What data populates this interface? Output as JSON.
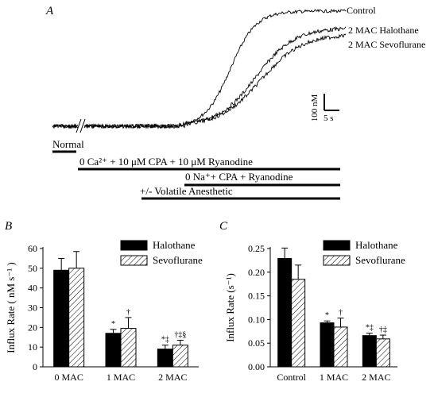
{
  "panels": {
    "a": "A",
    "b": "B",
    "c": "C"
  },
  "trace_panel": {
    "legend": [
      "Control",
      "2 MAC Halothane",
      "2 MAC Sevoflurane"
    ],
    "scale_bar": {
      "y_label": "100 nM",
      "x_label": "5 s"
    },
    "protocol_bars": [
      "Normal",
      "0 Ca²⁺ + 10 μM CPA + 10 μM Ryanodine",
      "0 Na⁺+  CPA + Ryanodine",
      "+/- Volatile Anesthetic"
    ]
  },
  "chart_data": [
    {
      "type": "bar",
      "categories": [
        "0 MAC",
        "1 MAC",
        "2 MAC"
      ],
      "series": [
        {
          "name": "Halothane",
          "values": [
            49,
            17,
            9
          ],
          "errors": [
            6,
            2,
            2
          ],
          "marks": [
            "",
            "*",
            "*‡"
          ]
        },
        {
          "name": "Sevoflurane",
          "values": [
            50,
            19.5,
            11
          ],
          "errors": [
            8.5,
            5.5,
            2.5
          ],
          "marks": [
            "",
            "†",
            "†‡§"
          ]
        }
      ],
      "ylabel": "Influx Rate  ( nM s⁻¹ )",
      "ylim": [
        0,
        60
      ],
      "yticks": [
        "0",
        "10",
        "20",
        "30",
        "40",
        "50",
        "60"
      ]
    },
    {
      "type": "bar",
      "categories": [
        "Control",
        "1 MAC",
        "2 MAC"
      ],
      "series": [
        {
          "name": "Halothane",
          "values": [
            0.229,
            0.093,
            0.066
          ],
          "errors": [
            0.022,
            0.004,
            0.005
          ],
          "marks": [
            "",
            "*",
            "*‡"
          ]
        },
        {
          "name": "Sevoflurane",
          "values": [
            0.185,
            0.084,
            0.059
          ],
          "errors": [
            0.03,
            0.019,
            0.008
          ],
          "marks": [
            "",
            "†",
            "†‡"
          ]
        }
      ],
      "ylabel": "Influx Rate  (s⁻¹)",
      "ylim": [
        0,
        0.25
      ],
      "yticks": [
        "0.00",
        "0.05",
        "0.10",
        "0.15",
        "0.20",
        "0.25"
      ]
    }
  ]
}
